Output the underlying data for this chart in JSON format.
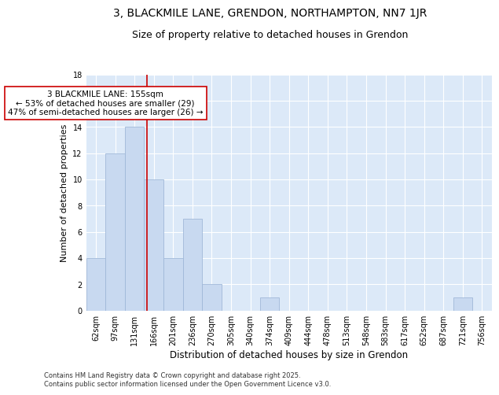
{
  "title": "3, BLACKMILE LANE, GRENDON, NORTHAMPTON, NN7 1JR",
  "subtitle": "Size of property relative to detached houses in Grendon",
  "xlabel": "Distribution of detached houses by size in Grendon",
  "ylabel": "Number of detached properties",
  "bin_labels": [
    "62sqm",
    "97sqm",
    "131sqm",
    "166sqm",
    "201sqm",
    "236sqm",
    "270sqm",
    "305sqm",
    "340sqm",
    "374sqm",
    "409sqm",
    "444sqm",
    "478sqm",
    "513sqm",
    "548sqm",
    "583sqm",
    "617sqm",
    "652sqm",
    "687sqm",
    "721sqm",
    "756sqm"
  ],
  "bar_heights": [
    4,
    12,
    14,
    10,
    4,
    7,
    2,
    0,
    0,
    1,
    0,
    0,
    0,
    0,
    0,
    0,
    0,
    0,
    0,
    1,
    0
  ],
  "bar_color": "#c8d9f0",
  "bar_edge_color": "#a0b8d8",
  "red_line_x": 2.65,
  "annotation_text": "3 BLACKMILE LANE: 155sqm\n← 53% of detached houses are smaller (29)\n47% of semi-detached houses are larger (26) →",
  "annotation_box_color": "#ffffff",
  "annotation_box_edge": "#cc0000",
  "ylim": [
    0,
    18
  ],
  "yticks": [
    0,
    2,
    4,
    6,
    8,
    10,
    12,
    14,
    16,
    18
  ],
  "background_color": "#dce9f8",
  "footer_text": "Contains HM Land Registry data © Crown copyright and database right 2025.\nContains public sector information licensed under the Open Government Licence v3.0.",
  "title_fontsize": 10,
  "subtitle_fontsize": 9,
  "xlabel_fontsize": 8.5,
  "ylabel_fontsize": 8,
  "tick_fontsize": 7,
  "annotation_fontsize": 7.5,
  "footer_fontsize": 6
}
